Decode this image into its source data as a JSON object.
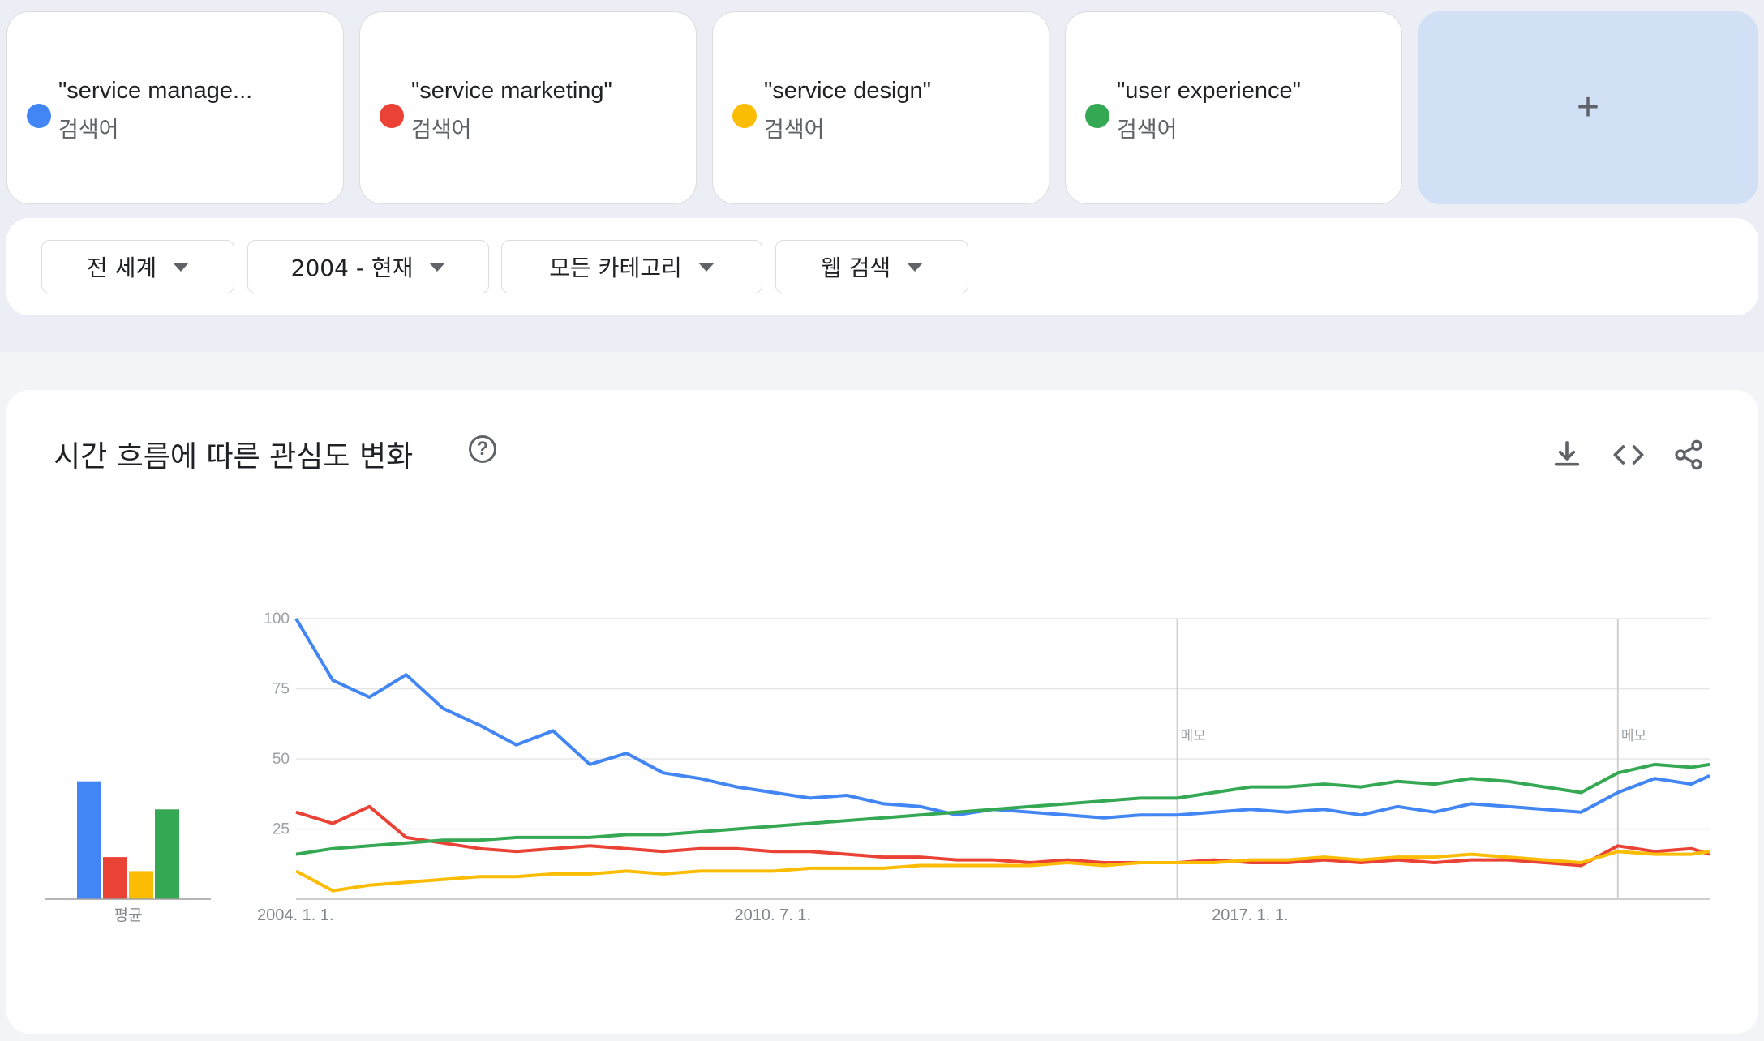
{
  "terms": [
    {
      "name": "\"service manage...",
      "sub": "검색어",
      "color": "#4285f4"
    },
    {
      "name": "\"service marketing\"",
      "sub": "검색어",
      "color": "#ea4335"
    },
    {
      "name": "\"service design\"",
      "sub": "검색어",
      "color": "#fbbc04"
    },
    {
      "name": "\"user experience\"",
      "sub": "검색어",
      "color": "#34a853"
    }
  ],
  "add_label": "+",
  "filters": [
    {
      "label": "전 세계"
    },
    {
      "label": "2004 - 현재"
    },
    {
      "label": "모든 카테고리"
    },
    {
      "label": "웹 검색"
    }
  ],
  "chart_title": "시간 흐름에 따른 관심도 변화",
  "toolbar": {
    "download": "download-icon",
    "embed": "embed-icon",
    "share": "share-icon"
  },
  "chart_data": {
    "type": "line",
    "ylim": [
      0,
      100
    ],
    "yticks": [
      "25",
      "50",
      "75",
      "100"
    ],
    "xticks": [
      "2004. 1. 1.",
      "2010. 7. 1.",
      "2017. 1. 1."
    ],
    "x_range": [
      "2004-01",
      "2023-04"
    ],
    "annotations": [
      {
        "label": "메모",
        "x": "2016-01"
      },
      {
        "label": "메모",
        "x": "2022-01"
      }
    ],
    "average_label": "평균",
    "averages": [
      42,
      15,
      10,
      32
    ],
    "series": [
      {
        "name": "\"service manage...",
        "color": "#4285f4",
        "x": [
          "2004-01",
          "2004-07",
          "2005-01",
          "2005-07",
          "2006-01",
          "2006-07",
          "2007-01",
          "2007-07",
          "2008-01",
          "2008-07",
          "2009-01",
          "2009-07",
          "2010-01",
          "2010-07",
          "2011-01",
          "2011-07",
          "2012-01",
          "2012-07",
          "2013-01",
          "2013-07",
          "2014-01",
          "2014-07",
          "2015-01",
          "2015-07",
          "2016-01",
          "2016-07",
          "2017-01",
          "2017-07",
          "2018-01",
          "2018-07",
          "2019-01",
          "2019-07",
          "2020-01",
          "2020-07",
          "2021-01",
          "2021-07",
          "2022-01",
          "2022-07",
          "2023-01",
          "2023-04"
        ],
        "values": [
          100,
          78,
          72,
          80,
          68,
          62,
          55,
          60,
          48,
          52,
          45,
          43,
          40,
          38,
          36,
          37,
          34,
          33,
          30,
          32,
          31,
          30,
          29,
          30,
          30,
          31,
          32,
          31,
          32,
          30,
          33,
          31,
          34,
          33,
          32,
          31,
          38,
          43,
          41,
          44
        ]
      },
      {
        "name": "\"service marketing\"",
        "color": "#ea4335",
        "x": [
          "2004-01",
          "2004-07",
          "2005-01",
          "2005-07",
          "2006-01",
          "2006-07",
          "2007-01",
          "2007-07",
          "2008-01",
          "2008-07",
          "2009-01",
          "2009-07",
          "2010-01",
          "2010-07",
          "2011-01",
          "2011-07",
          "2012-01",
          "2012-07",
          "2013-01",
          "2013-07",
          "2014-01",
          "2014-07",
          "2015-01",
          "2015-07",
          "2016-01",
          "2016-07",
          "2017-01",
          "2017-07",
          "2018-01",
          "2018-07",
          "2019-01",
          "2019-07",
          "2020-01",
          "2020-07",
          "2021-01",
          "2021-07",
          "2022-01",
          "2022-07",
          "2023-01",
          "2023-04"
        ],
        "values": [
          31,
          27,
          33,
          22,
          20,
          18,
          17,
          18,
          19,
          18,
          17,
          18,
          18,
          17,
          17,
          16,
          15,
          15,
          14,
          14,
          13,
          14,
          13,
          13,
          13,
          14,
          13,
          13,
          14,
          13,
          14,
          13,
          14,
          14,
          13,
          12,
          19,
          17,
          18,
          16
        ]
      },
      {
        "name": "\"service design\"",
        "color": "#fbbc04",
        "x": [
          "2004-01",
          "2004-07",
          "2005-01",
          "2005-07",
          "2006-01",
          "2006-07",
          "2007-01",
          "2007-07",
          "2008-01",
          "2008-07",
          "2009-01",
          "2009-07",
          "2010-01",
          "2010-07",
          "2011-01",
          "2011-07",
          "2012-01",
          "2012-07",
          "2013-01",
          "2013-07",
          "2014-01",
          "2014-07",
          "2015-01",
          "2015-07",
          "2016-01",
          "2016-07",
          "2017-01",
          "2017-07",
          "2018-01",
          "2018-07",
          "2019-01",
          "2019-07",
          "2020-01",
          "2020-07",
          "2021-01",
          "2021-07",
          "2022-01",
          "2022-07",
          "2023-01",
          "2023-04"
        ],
        "values": [
          10,
          3,
          5,
          6,
          7,
          8,
          8,
          9,
          9,
          10,
          9,
          10,
          10,
          10,
          11,
          11,
          11,
          12,
          12,
          12,
          12,
          13,
          12,
          13,
          13,
          13,
          14,
          14,
          15,
          14,
          15,
          15,
          16,
          15,
          14,
          13,
          17,
          16,
          16,
          17
        ]
      },
      {
        "name": "\"user experience\"",
        "color": "#34a853",
        "x": [
          "2004-01",
          "2004-07",
          "2005-01",
          "2005-07",
          "2006-01",
          "2006-07",
          "2007-01",
          "2007-07",
          "2008-01",
          "2008-07",
          "2009-01",
          "2009-07",
          "2010-01",
          "2010-07",
          "2011-01",
          "2011-07",
          "2012-01",
          "2012-07",
          "2013-01",
          "2013-07",
          "2014-01",
          "2014-07",
          "2015-01",
          "2015-07",
          "2016-01",
          "2016-07",
          "2017-01",
          "2017-07",
          "2018-01",
          "2018-07",
          "2019-01",
          "2019-07",
          "2020-01",
          "2020-07",
          "2021-01",
          "2021-07",
          "2022-01",
          "2022-07",
          "2023-01",
          "2023-04"
        ],
        "values": [
          16,
          18,
          19,
          20,
          21,
          21,
          22,
          22,
          22,
          23,
          23,
          24,
          25,
          26,
          27,
          28,
          29,
          30,
          31,
          32,
          33,
          34,
          35,
          36,
          36,
          38,
          40,
          40,
          41,
          40,
          42,
          41,
          43,
          42,
          40,
          38,
          45,
          48,
          47,
          48
        ]
      }
    ]
  }
}
